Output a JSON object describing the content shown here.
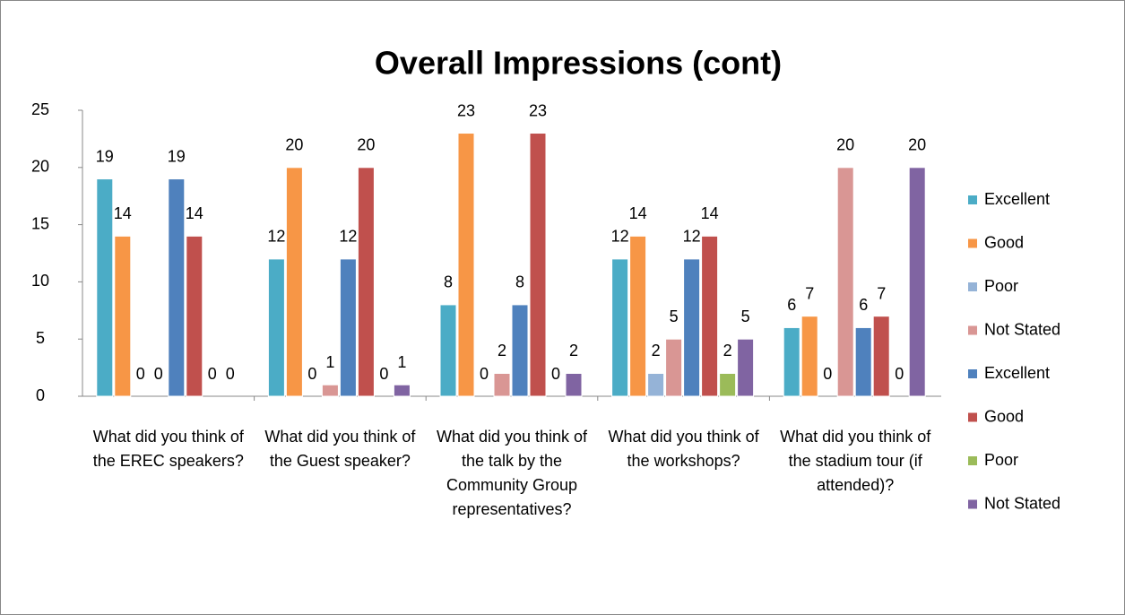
{
  "chart_data": {
    "type": "bar",
    "title": "Overall Impressions (cont)",
    "categories": [
      "What did you think of the EREC speakers?",
      "What did you think of the Guest speaker?",
      "What did you think of the talk by the Community Group representatives?",
      "What did you think of the workshops?",
      "What did you think of the stadium tour (if attended)?"
    ],
    "series": [
      {
        "name": "Excellent",
        "color": "#4bacc6",
        "values": [
          19,
          12,
          8,
          12,
          6
        ]
      },
      {
        "name": "Good",
        "color": "#f79646",
        "values": [
          14,
          20,
          23,
          14,
          7
        ]
      },
      {
        "name": "Poor",
        "color": "#95b3d7",
        "values": [
          0,
          0,
          0,
          2,
          0
        ]
      },
      {
        "name": "Not Stated",
        "color": "#d99694",
        "values": [
          0,
          1,
          2,
          5,
          20
        ]
      },
      {
        "name": "Excellent",
        "color": "#4f81bd",
        "values": [
          19,
          12,
          8,
          12,
          6
        ]
      },
      {
        "name": "Good",
        "color": "#c0504d",
        "values": [
          14,
          20,
          23,
          14,
          7
        ]
      },
      {
        "name": "Poor",
        "color": "#9bbb59",
        "values": [
          0,
          0,
          0,
          2,
          0
        ]
      },
      {
        "name": "Not Stated",
        "color": "#8064a2",
        "values": [
          0,
          1,
          2,
          5,
          20
        ]
      }
    ],
    "ylim": [
      0,
      25
    ],
    "yticks": [
      0,
      5,
      10,
      15,
      20,
      25
    ],
    "legend": "right",
    "grid": false
  }
}
